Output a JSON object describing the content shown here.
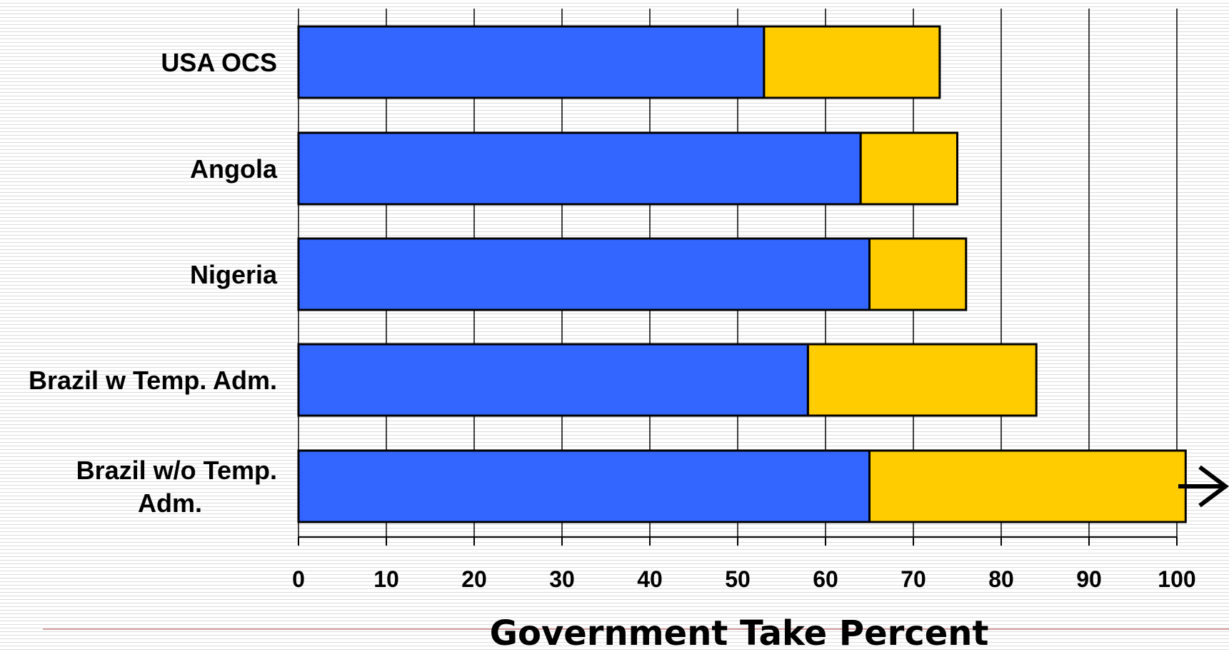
{
  "chart_data": {
    "type": "bar",
    "orientation": "horizontal",
    "stacked": true,
    "categories": [
      "USA OCS",
      "Angola",
      "Nigeria",
      "Brazil w Temp. Adm.",
      "Brazil w/o Temp. Adm."
    ],
    "category_lines": [
      [
        "USA OCS"
      ],
      [
        "Angola"
      ],
      [
        "Nigeria"
      ],
      [
        "Brazil w Temp. Adm."
      ],
      [
        "Brazil w/o Temp.",
        "Adm."
      ]
    ],
    "series": [
      {
        "color": "#3366ff",
        "values": [
          53,
          64,
          65,
          58,
          65
        ]
      },
      {
        "color": "#ffcc00",
        "values": [
          20,
          11,
          11,
          26,
          36
        ]
      }
    ],
    "xlim": [
      0,
      100
    ],
    "xticks": [
      0,
      10,
      20,
      30,
      40,
      50,
      60,
      70,
      80,
      90,
      100
    ],
    "xlabel": "Government Take Percent",
    "ylabel": "",
    "title": "",
    "grid": "vertical",
    "overflow_arrow": {
      "category_index": 4,
      "direction": "right"
    }
  }
}
